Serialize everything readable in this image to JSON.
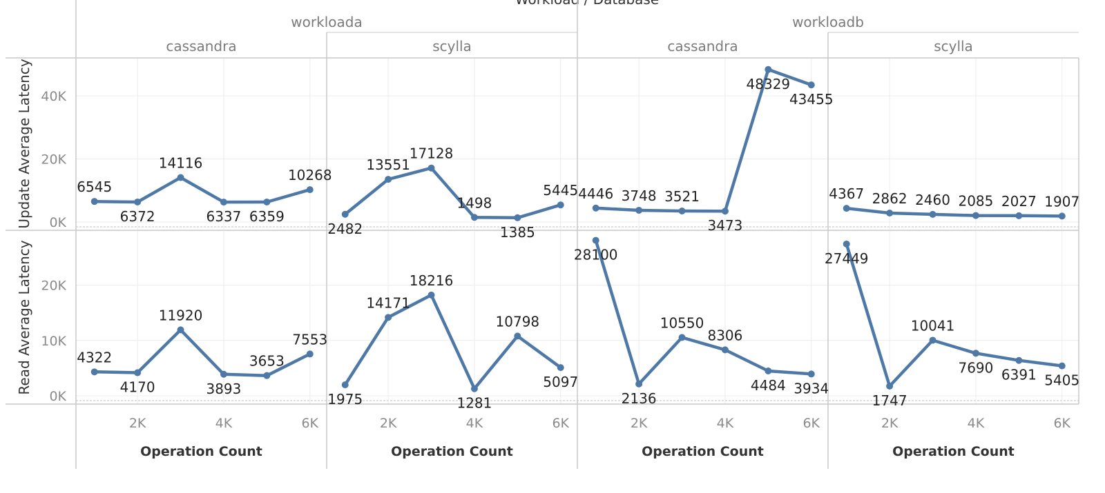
{
  "chart_data": {
    "type": "line",
    "title": "Workload / Database",
    "xlabel": "Operation Count",
    "x": [
      1000,
      2000,
      3000,
      4000,
      5000,
      6000
    ],
    "x_ticks": [
      2000,
      4000,
      6000
    ],
    "x_tick_labels": [
      "2K",
      "4K",
      "6K"
    ],
    "xlim": [
      700,
      6100
    ],
    "grid": true,
    "color": "#4e79a7",
    "workloads": [
      {
        "name": "workloada",
        "databases": [
          "cassandra",
          "scylla"
        ]
      },
      {
        "name": "workloadb",
        "databases": [
          "cassandra",
          "scylla"
        ]
      }
    ],
    "rows": [
      {
        "ylabel": "Update Average Latency",
        "ylim": [
          -1500,
          52000
        ],
        "y_ticks": [
          0,
          20000,
          40000
        ],
        "y_tick_labels": [
          "0K",
          "20K",
          "40K"
        ],
        "panels": [
          {
            "workload": "workloada",
            "database": "cassandra",
            "values": [
              6545,
              6372,
              14116,
              6337,
              6359,
              10268
            ]
          },
          {
            "workload": "workloada",
            "database": "scylla",
            "values": [
              2482,
              13551,
              17128,
              1498,
              1385,
              5445
            ]
          },
          {
            "workload": "workloadb",
            "database": "cassandra",
            "values": [
              4446,
              3748,
              3521,
              3473,
              48329,
              43455
            ]
          },
          {
            "workload": "workloadb",
            "database": "scylla",
            "values": [
              4367,
              2862,
              2460,
              2085,
              2027,
              1907
            ]
          }
        ]
      },
      {
        "ylabel": "Read Average Latency",
        "ylim": [
          -1000,
          29800
        ],
        "y_ticks": [
          0,
          10000,
          20000
        ],
        "y_tick_labels": [
          "0K",
          "10K",
          "20K"
        ],
        "panels": [
          {
            "workload": "workloada",
            "database": "cassandra",
            "values": [
              4322,
              4170,
              11920,
              3893,
              3653,
              7553
            ]
          },
          {
            "workload": "workloada",
            "database": "scylla",
            "values": [
              1975,
              14171,
              18216,
              1281,
              10798,
              5097
            ]
          },
          {
            "workload": "workloadb",
            "database": "cassandra",
            "values": [
              28100,
              2136,
              10550,
              8306,
              4484,
              3934
            ]
          },
          {
            "workload": "workloadb",
            "database": "scylla",
            "values": [
              27449,
              1747,
              10041,
              7690,
              6391,
              5405
            ]
          }
        ]
      }
    ]
  }
}
